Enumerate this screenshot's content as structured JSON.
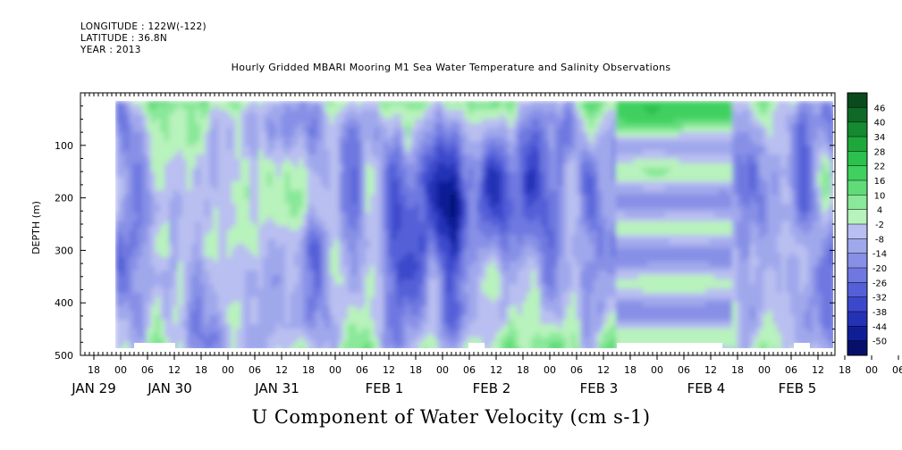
{
  "header": {
    "longitude": "LONGITUDE : 122W(-122)",
    "latitude": "LATITUDE : 36.8N",
    "year": "YEAR : 2013"
  },
  "chart_data": {
    "type": "heatmap",
    "title": "Hourly Gridded MBARI Mooring M1 Sea Water Temperature and Salinity Observations",
    "xlabel": "U Component of Water Velocity (cm s-1)",
    "ylabel": "DEPTH (m)",
    "ylim": [
      500,
      0
    ],
    "y_ticks": [
      100,
      200,
      300,
      400,
      500
    ],
    "y_tick_labels": [
      "100",
      "200",
      "300",
      "400",
      "500"
    ],
    "x_hour_ticks": [
      "18",
      "00",
      "06",
      "12",
      "18",
      "00",
      "06",
      "12",
      "18",
      "00",
      "06",
      "12",
      "18",
      "00",
      "06",
      "12",
      "18",
      "00",
      "06",
      "12",
      "18",
      "00",
      "06",
      "12",
      "18",
      "00",
      "06",
      "12",
      "18",
      "00",
      "06",
      "12"
    ],
    "x_day_labels": [
      "JAN 29",
      "JAN 30",
      "JAN 31",
      "FEB  1",
      "FEB  2",
      "FEB  3",
      "FEB  4",
      "FEB  5"
    ],
    "colorbar": {
      "levels": [
        46,
        40,
        34,
        28,
        22,
        16,
        10,
        4,
        -2,
        -8,
        -14,
        -20,
        -26,
        -32,
        -38,
        -44,
        -50
      ],
      "level_labels": [
        "46",
        "40",
        "34",
        "28",
        "22",
        "16",
        "10",
        "4",
        "-2",
        "-8",
        "-14",
        "-20",
        "-26",
        "-32",
        "-38",
        "-44",
        "-50"
      ],
      "colors": [
        "#0a4a1c",
        "#0f6a26",
        "#158a30",
        "#1ea83c",
        "#2bc14c",
        "#3fd060",
        "#5fdc78",
        "#8ae89a",
        "#b8f2bc",
        "#b9bff0",
        "#a0a8ec",
        "#8790e6",
        "#6e78e0",
        "#5560d8",
        "#3c48cc",
        "#2432b6",
        "#101e96",
        "#06106a"
      ]
    },
    "field_summary": "U velocity vs depth and time; mostly weak negative (blue/lavender) values with green positive streaks near the surface and bottom, strongest negative about -30 near 200-250 m on Jan 31 - Feb 1; from Feb 3 12:00 to Feb 4 12:00 smooth horizontal green/lavender bands",
    "grid": false
  }
}
